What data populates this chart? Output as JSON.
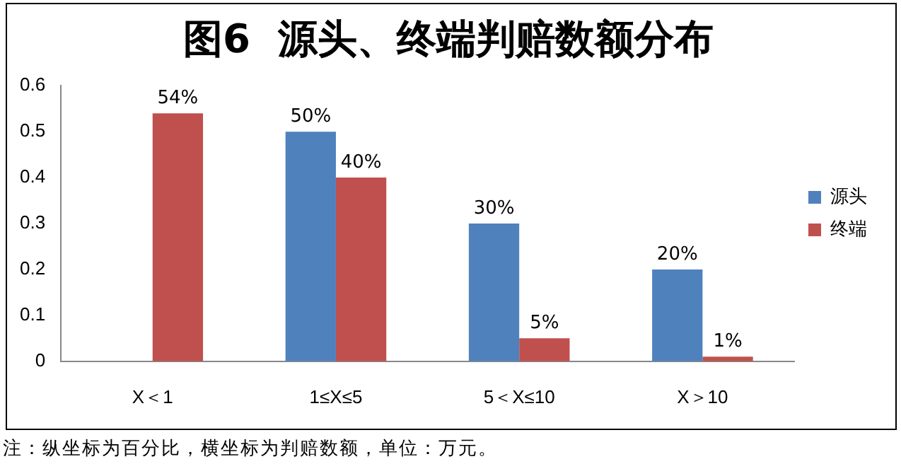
{
  "chart_data": {
    "type": "bar",
    "title": "图6  源头、终端判赔数额分布",
    "categories": [
      "X＜1",
      "1≤X≤5",
      "5＜X≤10",
      "X＞10"
    ],
    "series": [
      {
        "name": "源头",
        "color": "#4f81bd",
        "values": [
          null,
          0.5,
          0.3,
          0.2
        ],
        "value_labels": [
          null,
          "50%",
          "30%",
          "20%"
        ]
      },
      {
        "name": "终端",
        "color": "#c0504d",
        "values": [
          0.54,
          0.4,
          0.05,
          0.01
        ],
        "value_labels": [
          "54%",
          "40%",
          "5%",
          "1%"
        ]
      }
    ],
    "ylim": [
      0,
      0.6
    ],
    "yticks": [
      0,
      0.1,
      0.2,
      0.3,
      0.4,
      0.5,
      0.6
    ],
    "grid": false,
    "legend": "right",
    "annotations": [
      "注：纵坐标为百分比，横坐标为判赔数额，单位：万元。"
    ]
  }
}
